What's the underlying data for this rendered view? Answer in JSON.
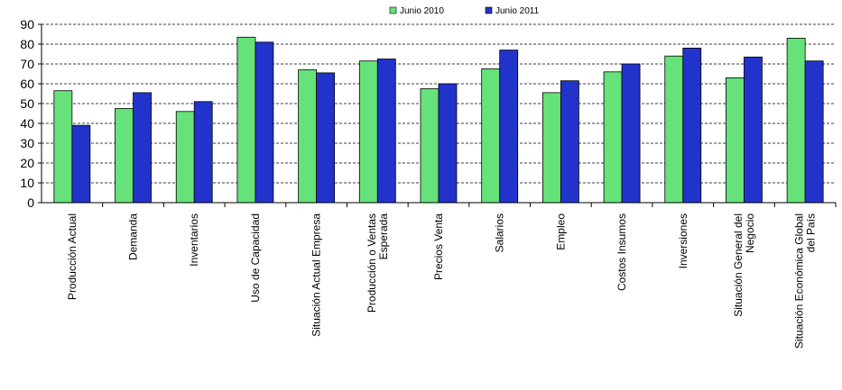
{
  "chart_data": {
    "type": "bar",
    "categories": [
      [
        "Producción Actual"
      ],
      [
        "Demanda"
      ],
      [
        "Inventarios"
      ],
      [
        "Uso de Capacidad"
      ],
      [
        "Situación Actual Empresa"
      ],
      [
        "Producción o Ventas",
        "Esperada"
      ],
      [
        "Precios Venta"
      ],
      [
        "Salarios"
      ],
      [
        "Empleo"
      ],
      [
        "Costos Insumos"
      ],
      [
        "Inversiones"
      ],
      [
        "Situación General del",
        "Negocio"
      ],
      [
        "Situación Económica Global",
        "del País"
      ]
    ],
    "series": [
      {
        "name": "Junio 2010",
        "color": "#66e27a",
        "values": [
          56.5,
          47.5,
          46,
          83.5,
          67,
          71.5,
          57.5,
          67.5,
          55.5,
          66,
          74,
          63,
          83
        ]
      },
      {
        "name": "Junio 2011",
        "color": "#2233cc",
        "values": [
          39,
          55.5,
          51,
          81,
          65.5,
          72.5,
          60,
          77,
          61.5,
          70,
          78,
          73.5,
          71.5
        ]
      }
    ],
    "yticks": [
      "0",
      "10",
      "20",
      "30",
      "40",
      "50",
      "60",
      "70",
      "80",
      "90"
    ],
    "ylim": [
      0,
      90
    ],
    "grid": "horizontal dashed",
    "legend": "top-center"
  }
}
